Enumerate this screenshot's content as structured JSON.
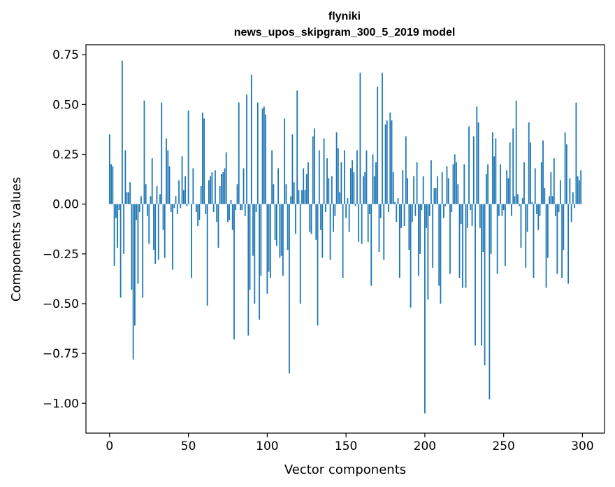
{
  "chart_data": {
    "type": "bar",
    "title_line1": "flyniki",
    "title_line2": "news_upos_skipgram_300_5_2019 model",
    "xlabel": "Vector components",
    "ylabel": "Components values",
    "xlim": [
      -15,
      314
    ],
    "ylim": [
      -1.15,
      0.8
    ],
    "xticks": [
      0,
      50,
      100,
      150,
      200,
      250,
      300
    ],
    "xtick_labels": [
      "0",
      "50",
      "100",
      "150",
      "200",
      "250",
      "300"
    ],
    "yticks": [
      0.75,
      0.5,
      0.25,
      0.0,
      -0.25,
      -0.5,
      -0.75,
      -1.0
    ],
    "ytick_labels": [
      "0.75",
      "0.50",
      "0.25",
      "0.00",
      "−0.25",
      "−0.50",
      "−0.75",
      "−1.00"
    ],
    "bar_color": "#1f77b4",
    "values": [
      0.35,
      0.2,
      0.19,
      -0.31,
      -0.07,
      -0.22,
      -0.03,
      -0.47,
      0.72,
      -0.25,
      0.27,
      0.06,
      0.06,
      0.11,
      -0.43,
      -0.78,
      -0.61,
      -0.08,
      -0.4,
      -0.04,
      0.04,
      -0.47,
      0.52,
      0.1,
      -0.06,
      -0.2,
      0.04,
      0.23,
      -0.23,
      -0.3,
      0.09,
      -0.28,
      0.05,
      0.51,
      -0.13,
      -0.27,
      0.33,
      0.27,
      0.19,
      -0.04,
      -0.33,
      -0.02,
      0.04,
      -0.05,
      0.12,
      -0.02,
      0.24,
      0.07,
      0.14,
      -0.01,
      0.47,
      0.0,
      -0.37,
      0.18,
      0.0,
      -0.04,
      -0.11,
      -0.08,
      0.09,
      0.46,
      0.43,
      -0.05,
      -0.51,
      0.12,
      0.14,
      0.16,
      -0.04,
      0.17,
      -0.09,
      -0.22,
      0.09,
      0.15,
      0.16,
      0.18,
      0.26,
      -0.09,
      -0.08,
      0.02,
      -0.13,
      -0.68,
      -0.03,
      0.1,
      0.51,
      -0.03,
      -0.03,
      0.18,
      -0.06,
      0.55,
      -0.66,
      -0.43,
      0.65,
      -0.26,
      -0.5,
      -0.04,
      0.51,
      -0.58,
      -0.36,
      0.48,
      0.49,
      0.45,
      -0.45,
      -0.34,
      -0.37,
      0.27,
      0.1,
      -0.18,
      -0.21,
      0.18,
      -0.27,
      -0.26,
      -0.36,
      0.43,
      0.1,
      -0.23,
      -0.85,
      0.04,
      0.35,
      0.11,
      -0.15,
      0.57,
      0.07,
      -0.5,
      0.07,
      0.18,
      0.07,
      0.15,
      0.21,
      -0.14,
      -0.15,
      0.34,
      0.38,
      -0.18,
      -0.61,
      0.27,
      -0.13,
      -0.27,
      0.33,
      -0.04,
      0.23,
      0.13,
      -0.28,
      0.14,
      -0.14,
      -0.06,
      0.36,
      0.28,
      0.06,
      0.21,
      -0.37,
      0.27,
      -0.07,
      0.03,
      -0.14,
      0.18,
      0.22,
      0.16,
      -0.01,
      0.27,
      -0.19,
      0.66,
      -0.2,
      0.14,
      0.16,
      0.27,
      -0.19,
      -0.05,
      -0.41,
      0.25,
      0.14,
      0.21,
      0.59,
      -0.24,
      -0.07,
      0.66,
      -0.28,
      0.4,
      0.42,
      -0.04,
      0.46,
      0.42,
      0.16,
      0.01,
      -0.09,
      0.03,
      -0.37,
      -0.12,
      0.17,
      -0.11,
      0.34,
      0.13,
      -0.23,
      -0.52,
      -0.09,
      0.14,
      -0.06,
      0.21,
      -0.36,
      -0.25,
      -0.03,
      0.14,
      -1.05,
      -0.12,
      -0.48,
      -0.06,
      0.22,
      -0.32,
      0.08,
      0.08,
      0.14,
      -0.41,
      -0.5,
      0.16,
      -0.07,
      -0.01,
      0.19,
      0.13,
      -0.35,
      -0.04,
      0.2,
      0.25,
      0.21,
      0.1,
      -0.37,
      -0.1,
      -0.42,
      0.2,
      -0.42,
      -0.12,
      0.39,
      -0.03,
      -0.11,
      0.34,
      -0.71,
      0.49,
      0.41,
      -0.12,
      -0.71,
      -0.24,
      -0.81,
      0.15,
      0.2,
      -0.98,
      -0.25,
      0.36,
      0.24,
      0.33,
      -0.35,
      -0.06,
      0.2,
      -0.06,
      -0.03,
      -0.31,
      0.17,
      0.13,
      0.31,
      -0.06,
      0.38,
      0.04,
      0.52,
      0.05,
      -0.01,
      -0.22,
      0.03,
      0.21,
      -0.32,
      -0.14,
      0.41,
      0.31,
      0.01,
      -0.37,
      0.18,
      -0.05,
      -0.13,
      -0.06,
      0.21,
      0.32,
      0.08,
      -0.42,
      -0.27,
      0.04,
      0.16,
      0.04,
      0.23,
      -0.06,
      -0.35,
      -0.04,
      0.12,
      -0.37,
      -0.23,
      0.36,
      0.3,
      -0.4,
      0.13,
      -0.09,
      0.06,
      -0.02,
      0.51,
      0.14,
      0.12,
      0.17
    ]
  }
}
